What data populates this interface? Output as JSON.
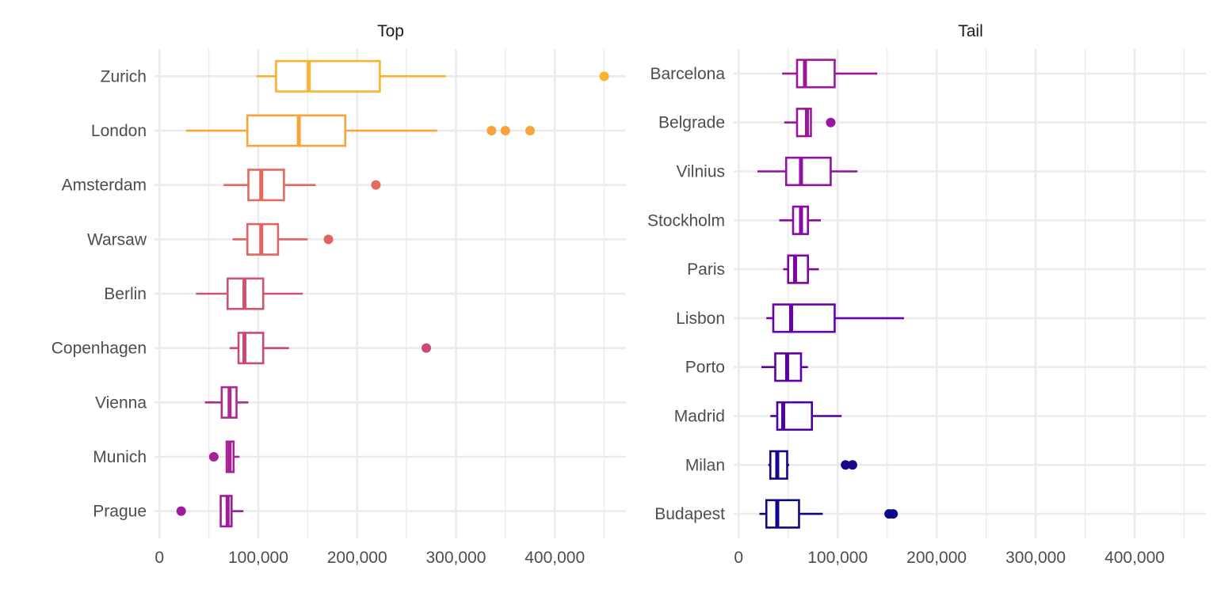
{
  "chart_data": [
    {
      "type": "boxplot",
      "title": "Top",
      "xlabel": "",
      "ylabel": "",
      "xlim": [
        -5000,
        472000
      ],
      "x_ticks": [
        0,
        100000,
        200000,
        300000,
        400000
      ],
      "x_tick_labels": [
        "0",
        "100,000",
        "200,000",
        "300,000",
        "400,000"
      ],
      "grid": true,
      "legend": "none",
      "categories": [
        "Zurich",
        "London",
        "Amsterdam",
        "Warsaw",
        "Berlin",
        "Copenhagen",
        "Vienna",
        "Munich",
        "Prague"
      ],
      "series": [
        {
          "name": "Zurich",
          "color": "#FCB130",
          "whisker_low": 98000,
          "q1": 118000,
          "median": 151000,
          "q3": 223000,
          "whisker_high": 290000,
          "outliers": [
            450000
          ]
        },
        {
          "name": "London",
          "color": "#F9A43A",
          "whisker_low": 27000,
          "q1": 89000,
          "median": 141000,
          "q3": 188000,
          "whisker_high": 281000,
          "outliers": [
            336000,
            350000,
            375000
          ]
        },
        {
          "name": "Amsterdam",
          "color": "#E4695E",
          "whisker_low": 65000,
          "q1": 90000,
          "median": 103000,
          "q3": 126000,
          "whisker_high": 158000,
          "outliers": [
            219000
          ]
        },
        {
          "name": "Warsaw",
          "color": "#E16462",
          "whisker_low": 74000,
          "q1": 89000,
          "median": 103000,
          "q3": 120000,
          "whisker_high": 150000,
          "outliers": [
            171000
          ]
        },
        {
          "name": "Berlin",
          "color": "#D25371",
          "whisker_low": 37000,
          "q1": 69000,
          "median": 86000,
          "q3": 105000,
          "whisker_high": 145000,
          "outliers": []
        },
        {
          "name": "Copenhagen",
          "color": "#CC4878",
          "whisker_low": 71000,
          "q1": 80000,
          "median": 86000,
          "q3": 105000,
          "whisker_high": 131000,
          "outliers": [
            270000
          ]
        },
        {
          "name": "Vienna",
          "color": "#AE2A8E",
          "whisker_low": 46000,
          "q1": 63000,
          "median": 71000,
          "q3": 78000,
          "whisker_high": 90000,
          "outliers": []
        },
        {
          "name": "Munich",
          "color": "#A62295",
          "whisker_low": 68000,
          "q1": 68000,
          "median": 71000,
          "q3": 75000,
          "whisker_high": 81000,
          "outliers": [
            55000
          ]
        },
        {
          "name": "Prague",
          "color": "#A01C9A",
          "whisker_low": 62000,
          "q1": 62000,
          "median": 69000,
          "q3": 73000,
          "whisker_high": 85000,
          "outliers": [
            22000
          ]
        }
      ]
    },
    {
      "type": "boxplot",
      "title": "Tail",
      "xlabel": "",
      "ylabel": "",
      "xlim": [
        -5000,
        472000
      ],
      "x_ticks": [
        0,
        100000,
        200000,
        300000,
        400000
      ],
      "x_tick_labels": [
        "0",
        "100,000",
        "200,000",
        "300,000",
        "400,000"
      ],
      "grid": true,
      "legend": "none",
      "categories": [
        "Barcelona",
        "Belgrade",
        "Vilnius",
        "Stockholm",
        "Paris",
        "Lisbon",
        "Porto",
        "Madrid",
        "Milan",
        "Budapest"
      ],
      "series": [
        {
          "name": "Barcelona",
          "color": "#9C179E",
          "whisker_low": 44000,
          "q1": 59000,
          "median": 67000,
          "q3": 97000,
          "whisker_high": 140000,
          "outliers": []
        },
        {
          "name": "Belgrade",
          "color": "#9A169F",
          "whisker_low": 46000,
          "q1": 59000,
          "median": 69000,
          "q3": 73000,
          "whisker_high": 73000,
          "outliers": [
            93000
          ]
        },
        {
          "name": "Vilnius",
          "color": "#9011A2",
          "whisker_low": 19000,
          "q1": 48000,
          "median": 63000,
          "q3": 93000,
          "whisker_high": 120000,
          "outliers": []
        },
        {
          "name": "Stockholm",
          "color": "#8B0AA5",
          "whisker_low": 41000,
          "q1": 55000,
          "median": 63000,
          "q3": 70000,
          "whisker_high": 83000,
          "outliers": []
        },
        {
          "name": "Paris",
          "color": "#7E03A8",
          "whisker_low": 45000,
          "q1": 50000,
          "median": 57000,
          "q3": 70000,
          "whisker_high": 81000,
          "outliers": []
        },
        {
          "name": "Lisbon",
          "color": "#6A00A8",
          "whisker_low": 28000,
          "q1": 35000,
          "median": 53000,
          "q3": 97000,
          "whisker_high": 167000,
          "outliers": []
        },
        {
          "name": "Porto",
          "color": "#5B01A5",
          "whisker_low": 23000,
          "q1": 37000,
          "median": 49000,
          "q3": 63000,
          "whisker_high": 70000,
          "outliers": []
        },
        {
          "name": "Madrid",
          "color": "#4C02A1",
          "whisker_low": 32000,
          "q1": 39000,
          "median": 45000,
          "q3": 74000,
          "whisker_high": 104000,
          "outliers": []
        },
        {
          "name": "Milan",
          "color": "#150987",
          "whisker_low": 30000,
          "q1": 32000,
          "median": 39000,
          "q3": 49000,
          "whisker_high": 51000,
          "outliers": [
            108000,
            115000
          ]
        },
        {
          "name": "Budapest",
          "color": "#0D0887",
          "whisker_low": 21000,
          "q1": 28000,
          "median": 39000,
          "q3": 61000,
          "whisker_high": 85000,
          "outliers": [
            152000,
            156000
          ]
        }
      ]
    }
  ]
}
